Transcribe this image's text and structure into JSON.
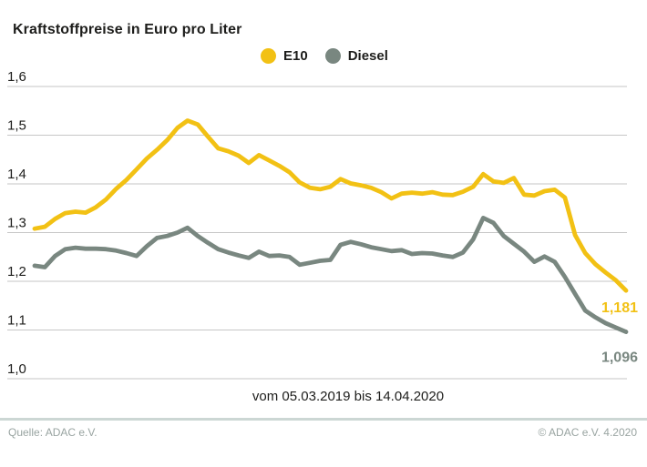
{
  "header": {
    "title": "Kraftstoffpreise in Euro pro Liter"
  },
  "legend": {
    "items": [
      {
        "label": "E10",
        "color": "#F2C114"
      },
      {
        "label": "Diesel",
        "color": "#798780"
      }
    ]
  },
  "chart_data": {
    "type": "line",
    "title": "Kraftstoffpreise in Euro pro Liter",
    "x_caption": "vom 05.03.2019 bis 14.04.2020",
    "x_range": [
      "05.03.2019",
      "14.04.2020"
    ],
    "x_interval": "weekly",
    "ylabel": "Euro pro Liter",
    "ylim": [
      1.0,
      1.6
    ],
    "y_tick_step": 0.1,
    "y_ticks": [
      "1,6",
      "1,5",
      "1,4",
      "1,3",
      "1,2",
      "1,1",
      "1,0"
    ],
    "grid": "horizontal",
    "grid_color": "#c6c6c6",
    "legend_position": "top",
    "series": [
      {
        "name": "E10",
        "color": "#F2C114",
        "end_label": "1,181",
        "end_value": 1.181,
        "values": [
          1.308,
          1.312,
          1.328,
          1.34,
          1.343,
          1.341,
          1.352,
          1.368,
          1.39,
          1.408,
          1.43,
          1.452,
          1.47,
          1.49,
          1.515,
          1.53,
          1.522,
          1.497,
          1.473,
          1.467,
          1.458,
          1.443,
          1.459,
          1.448,
          1.437,
          1.424,
          1.403,
          1.392,
          1.389,
          1.394,
          1.41,
          1.401,
          1.397,
          1.392,
          1.383,
          1.37,
          1.38,
          1.382,
          1.38,
          1.383,
          1.378,
          1.377,
          1.384,
          1.394,
          1.42,
          1.405,
          1.402,
          1.412,
          1.378,
          1.376,
          1.385,
          1.388,
          1.372,
          1.295,
          1.258,
          1.235,
          1.218,
          1.202,
          1.181
        ]
      },
      {
        "name": "Diesel",
        "color": "#798780",
        "end_label": "1,096",
        "end_value": 1.096,
        "values": [
          1.232,
          1.229,
          1.252,
          1.266,
          1.269,
          1.267,
          1.267,
          1.266,
          1.263,
          1.258,
          1.252,
          1.272,
          1.289,
          1.293,
          1.3,
          1.31,
          1.293,
          1.279,
          1.266,
          1.259,
          1.253,
          1.248,
          1.261,
          1.252,
          1.253,
          1.25,
          1.234,
          1.238,
          1.242,
          1.244,
          1.275,
          1.281,
          1.276,
          1.27,
          1.266,
          1.262,
          1.264,
          1.256,
          1.258,
          1.257,
          1.253,
          1.25,
          1.259,
          1.286,
          1.33,
          1.32,
          1.293,
          1.277,
          1.261,
          1.24,
          1.251,
          1.24,
          1.209,
          1.174,
          1.14,
          1.126,
          1.114,
          1.105,
          1.096
        ]
      }
    ]
  },
  "footer": {
    "source": "Quelle: ADAC e.V.",
    "copyright": "© ADAC e.V. 4.2020"
  }
}
